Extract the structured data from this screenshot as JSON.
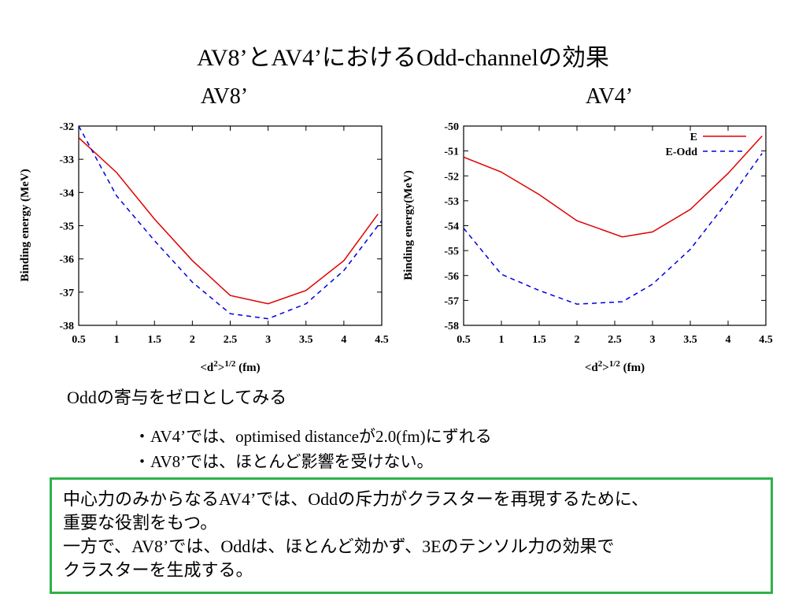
{
  "slide": {
    "title": "AV8’とAV4’におけるOdd-channelの効果",
    "note": "Oddの寄与をゼロとしてみる",
    "bullets": [
      "・AV4’では、optimised distanceが2.0(fm)にずれる",
      "・AV8’では、ほとんど影響を受けない。"
    ],
    "conclusion": [
      "中心力のみからなるAV4’では、Oddの斥力がクラスターを再現するために、",
      "重要な役割をもつ。",
      "一方で、AV8’では、Oddは、ほとんど効かず、3Eのテンソル力の効果で",
      "クラスターを生成する。"
    ],
    "box_color": "#2fb24a"
  },
  "chart_data": [
    {
      "type": "line",
      "title": "AV8’",
      "xlabel": "<d²>^1/2 (fm)",
      "xlabel_main": "<d",
      "xlabel_sup1": "2",
      "xlabel_mid": ">",
      "xlabel_sup2": "1/2",
      "xlabel_unit": " (fm)",
      "ylabel": "Binding energy (MeV)",
      "xlim": [
        0.5,
        4.5
      ],
      "ylim": [
        -38,
        -32
      ],
      "xticks": [
        "0.5",
        "1",
        "1.5",
        "2",
        "2.5",
        "3",
        "3.5",
        "4",
        "4.5"
      ],
      "yticks": [
        "-32",
        "-33",
        "-34",
        "-35",
        "-36",
        "-37",
        "-38"
      ],
      "grid": false,
      "legend": "none",
      "series": [
        {
          "color": "#e00000",
          "dash": "solid",
          "points": [
            [
              0.5,
              -32.35
            ],
            [
              1.0,
              -33.4
            ],
            [
              1.5,
              -34.8
            ],
            [
              2.0,
              -36.05
            ],
            [
              2.5,
              -37.1
            ],
            [
              3.0,
              -37.35
            ],
            [
              3.5,
              -36.95
            ],
            [
              4.0,
              -36.05
            ],
            [
              4.45,
              -34.65
            ]
          ]
        },
        {
          "color": "#0000e0",
          "dash": "dashed",
          "points": [
            [
              0.5,
              -32.0
            ],
            [
              1.0,
              -34.1
            ],
            [
              1.5,
              -35.45
            ],
            [
              2.0,
              -36.7
            ],
            [
              2.5,
              -37.65
            ],
            [
              3.0,
              -37.8
            ],
            [
              3.5,
              -37.35
            ],
            [
              4.0,
              -36.35
            ],
            [
              4.5,
              -34.85
            ]
          ]
        }
      ]
    },
    {
      "type": "line",
      "title": "AV4’",
      "xlabel": "<d²>^1/2 (fm)",
      "xlabel_main": "<d",
      "xlabel_sup1": "2",
      "xlabel_mid": ">",
      "xlabel_sup2": "1/2",
      "xlabel_unit": " (fm)",
      "ylabel": "Binding energy(MeV)",
      "xlim": [
        0.5,
        4.5
      ],
      "ylim": [
        -58,
        -50
      ],
      "xticks": [
        "0.5",
        "1",
        "1.5",
        "2",
        "2.5",
        "3",
        "3.5",
        "4",
        "4.5"
      ],
      "yticks": [
        "-50",
        "-51",
        "-52",
        "-53",
        "-54",
        "-55",
        "-56",
        "-57",
        "-58"
      ],
      "grid": false,
      "legend": "top-right",
      "series": [
        {
          "name": "E",
          "color": "#e00000",
          "dash": "solid",
          "points": [
            [
              0.5,
              -51.25
            ],
            [
              1.0,
              -51.85
            ],
            [
              1.5,
              -52.75
            ],
            [
              2.0,
              -53.8
            ],
            [
              2.6,
              -54.45
            ],
            [
              3.0,
              -54.25
            ],
            [
              3.5,
              -53.35
            ],
            [
              4.0,
              -51.9
            ],
            [
              4.45,
              -50.4
            ]
          ]
        },
        {
          "name": "E-Odd",
          "color": "#0000e0",
          "dash": "dashed",
          "points": [
            [
              0.5,
              -54.1
            ],
            [
              1.0,
              -55.95
            ],
            [
              1.5,
              -56.6
            ],
            [
              2.0,
              -57.15
            ],
            [
              2.6,
              -57.05
            ],
            [
              3.0,
              -56.35
            ],
            [
              3.5,
              -54.95
            ],
            [
              4.0,
              -53.0
            ],
            [
              4.45,
              -51.1
            ]
          ]
        }
      ]
    }
  ]
}
